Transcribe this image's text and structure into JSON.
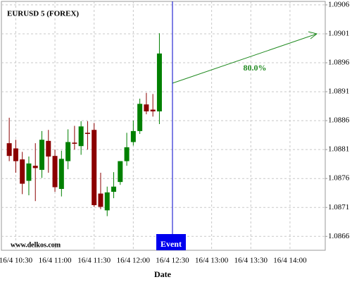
{
  "chart_data": {
    "type": "candlestick",
    "title": "EURUSD 5 (FOREX)",
    "x_label": "Date",
    "watermark": "www.delkos.com",
    "event_label": "Event",
    "event_x": "16/4 12:30",
    "forecast_label": "80.0%",
    "x": [
      "16/4 10:25",
      "16/4 10:30",
      "16/4 10:35",
      "16/4 10:40",
      "16/4 10:45",
      "16/4 10:50",
      "16/4 10:55",
      "16/4 11:00",
      "16/4 11:05",
      "16/4 11:10",
      "16/4 11:15",
      "16/4 11:20",
      "16/4 11:25",
      "16/4 11:30",
      "16/4 11:35",
      "16/4 11:40",
      "16/4 11:45",
      "16/4 11:50",
      "16/4 11:55",
      "16/4 12:00",
      "16/4 12:05",
      "16/4 12:10",
      "16/4 12:15",
      "16/4 12:20"
    ],
    "open": [
      1.08821,
      1.08812,
      1.08793,
      1.08756,
      1.08782,
      1.08775,
      1.08825,
      1.08799,
      1.08742,
      1.0879,
      1.08822,
      1.08816,
      1.08839,
      1.08844,
      1.08734,
      1.08705,
      1.08737,
      1.08754,
      1.0879,
      1.08823,
      1.08842,
      1.08888,
      1.08879,
      1.08876
    ],
    "high": [
      1.08865,
      1.08827,
      1.08806,
      1.08798,
      1.08821,
      1.08842,
      1.08844,
      1.0881,
      1.08808,
      1.08845,
      1.08851,
      1.08859,
      1.08859,
      1.08856,
      1.0877,
      1.08746,
      1.08771,
      1.0879,
      1.08839,
      1.0886,
      1.08898,
      1.08908,
      1.08906,
      1.09011
    ],
    "low": [
      1.0879,
      1.0877,
      1.08733,
      1.08731,
      1.08721,
      1.08761,
      1.0877,
      1.08737,
      1.08729,
      1.08776,
      1.0881,
      1.08801,
      1.0881,
      1.08711,
      1.08707,
      1.08695,
      1.08726,
      1.08749,
      1.08782,
      1.08817,
      1.08837,
      1.08871,
      1.08867,
      1.08854
    ],
    "close": [
      1.08799,
      1.0879,
      1.08751,
      1.08786,
      1.08778,
      1.08827,
      1.08798,
      1.08745,
      1.08794,
      1.08823,
      1.0882,
      1.0885,
      1.08837,
      1.08714,
      1.08711,
      1.08736,
      1.08746,
      1.0879,
      1.08814,
      1.08842,
      1.08889,
      1.08876,
      1.08876,
      1.08976
    ],
    "up_color": "#008000",
    "down_color": "#8b0000",
    "xlim": [
      "16/4 10:19",
      "16/4 14:27"
    ],
    "xticks": [
      "16/4 10:30",
      "16/4 11:00",
      "16/4 11:30",
      "16/4 12:00",
      "16/4 12:30",
      "16/4 13:00",
      "16/4 13:30",
      "16/4 14:00"
    ],
    "ylim": [
      1.08636,
      1.09066
    ],
    "yticks": [
      1.0866,
      1.0871,
      1.0876,
      1.0881,
      1.0886,
      1.0891,
      1.0896,
      1.0901,
      1.0906
    ],
    "grid": true
  }
}
